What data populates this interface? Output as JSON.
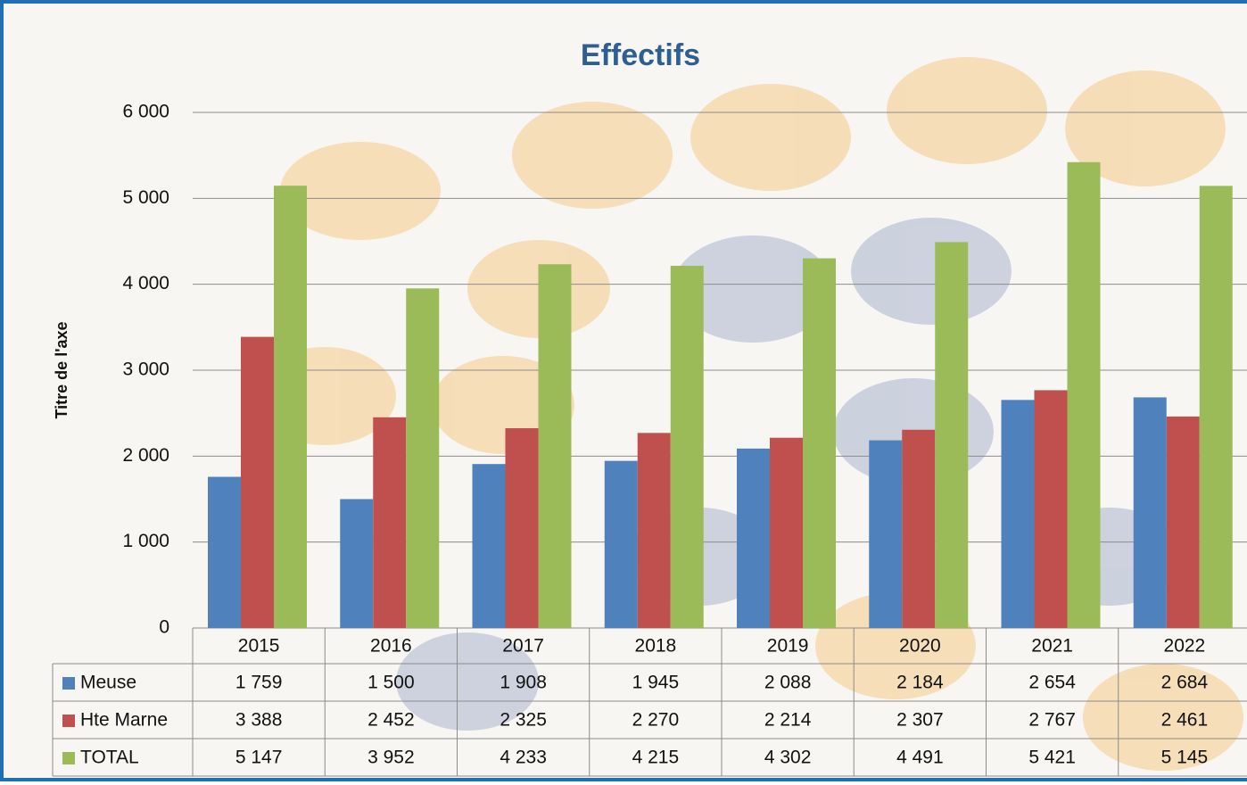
{
  "chart_data": {
    "type": "bar",
    "title": "Effectifs",
    "y_label": "Titre de l'axe",
    "categories": [
      "2015",
      "2016",
      "2017",
      "2018",
      "2019",
      "2020",
      "2021",
      "2022"
    ],
    "series": [
      {
        "name": "Meuse",
        "color": "#4f81bd",
        "values": [
          1759,
          1500,
          1908,
          1945,
          2088,
          2184,
          2654,
          2684
        ],
        "value_labels": [
          "1 759",
          "1 500",
          "1 908",
          "1 945",
          "2 088",
          "2 184",
          "2 654",
          "2 684"
        ]
      },
      {
        "name": "Hte Marne",
        "color": "#c0504d",
        "values": [
          3388,
          2452,
          2325,
          2270,
          2214,
          2307,
          2767,
          2461
        ],
        "value_labels": [
          "3 388",
          "2 452",
          "2 325",
          "2 270",
          "2 214",
          "2 307",
          "2 767",
          "2 461"
        ]
      },
      {
        "name": "TOTAL",
        "color": "#9bbb59",
        "values": [
          5147,
          3952,
          4233,
          4215,
          4302,
          4491,
          5421,
          5145
        ],
        "value_labels": [
          "5 147",
          "3 952",
          "4 233",
          "4 215",
          "4 302",
          "4 491",
          "5 421",
          "5 145"
        ]
      }
    ],
    "ylim": [
      0,
      6000
    ],
    "yticks": [
      0,
      {
        "value": 1000,
        "label": "1 000"
      },
      {
        "value": 2000,
        "label": "2 000"
      },
      {
        "value": 3000,
        "label": "3 000"
      },
      {
        "value": 4000,
        "label": "4 000"
      },
      {
        "value": 5000,
        "label": "5 000"
      },
      {
        "value": 6000,
        "label": "6 000"
      }
    ],
    "grid": true
  }
}
